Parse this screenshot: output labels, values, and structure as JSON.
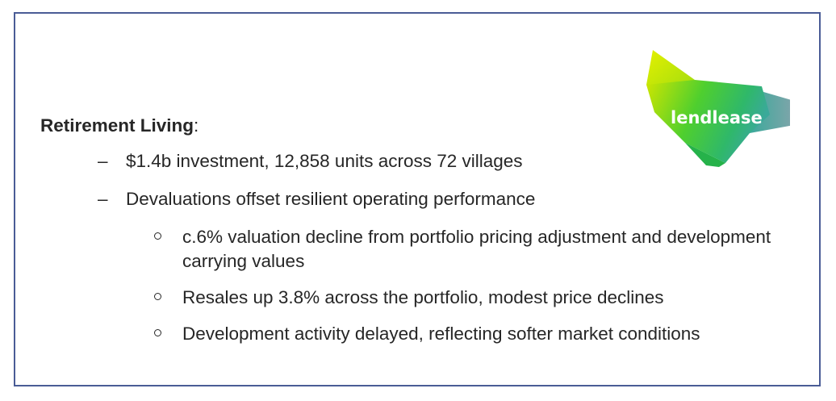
{
  "brand": {
    "logo_text": "lendlease",
    "colors": {
      "lime": "#c4e000",
      "green": "#2fc43f",
      "teal": "#3aa99a",
      "slate": "#7e9aa4"
    }
  },
  "section": {
    "title": "Retirement Living",
    "title_suffix": ":"
  },
  "bullets": [
    {
      "marker": "–",
      "text": "$1.4b investment, 12,858 units across 72 villages"
    },
    {
      "marker": "–",
      "text": "Devaluations offset resilient operating performance",
      "sub": [
        {
          "text": "c.6% valuation decline from portfolio pricing adjustment and development carrying values"
        },
        {
          "text": "Resales up 3.8% across the portfolio, modest price declines"
        },
        {
          "text": "Development activity delayed, reflecting softer market conditions"
        }
      ]
    }
  ]
}
